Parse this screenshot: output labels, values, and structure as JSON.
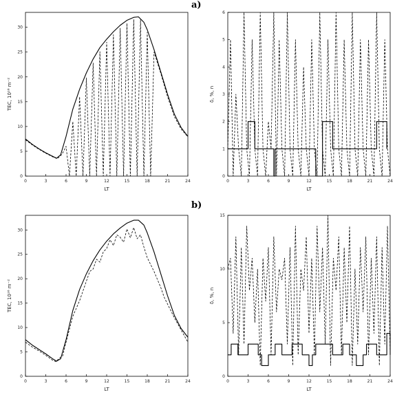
{
  "panel_labels": [
    "a)",
    "b)"
  ],
  "chart_data": [
    {
      "id": "a-left",
      "type": "line",
      "xlabel": "LT",
      "ylabel": "TEC, 10¹⁶ m⁻²",
      "xlim": [
        0,
        24
      ],
      "ylim": [
        0,
        33
      ],
      "xticks": [
        0,
        3,
        6,
        9,
        12,
        15,
        18,
        21,
        24
      ],
      "yticks": [
        0,
        5,
        10,
        15,
        20,
        25,
        30
      ],
      "series": [
        {
          "style": "solid",
          "x": [
            0,
            1,
            2,
            3,
            4,
            4.6,
            5.2,
            6,
            7,
            8,
            9,
            10,
            11,
            12,
            13,
            14,
            15,
            16,
            16.7,
            17.5,
            18,
            19,
            20,
            21,
            22,
            23,
            24
          ],
          "y": [
            7.5,
            6.4,
            5.5,
            4.7,
            4.0,
            3.6,
            4.3,
            8.0,
            13.5,
            17.5,
            20.8,
            23.6,
            25.9,
            27.6,
            29.1,
            30.4,
            31.4,
            32.0,
            32.1,
            31.0,
            29.5,
            25.5,
            21.0,
            16.5,
            12.5,
            9.8,
            8.0
          ]
        },
        {
          "style": "dashed",
          "x": [
            0,
            1,
            2,
            3,
            4,
            4.7,
            5.4,
            6,
            6.5,
            7,
            7.5,
            8,
            8.5,
            9,
            9.5,
            10,
            10.5,
            11,
            11.5,
            12,
            12.5,
            13,
            13.5,
            14,
            14.5,
            15,
            15.5,
            16,
            16.5,
            17,
            17.5,
            18,
            18.5,
            19,
            20,
            21,
            22,
            23,
            24
          ],
          "y": [
            7.3,
            6.3,
            5.4,
            4.6,
            3.9,
            3.5,
            4.4,
            6.0,
            0,
            11.0,
            0,
            16.0,
            0,
            19.8,
            0,
            22.8,
            0,
            25.1,
            0,
            27.0,
            0,
            28.5,
            0,
            29.8,
            0,
            30.8,
            0,
            31.6,
            0,
            31.5,
            0,
            29.0,
            0,
            25.0,
            20.7,
            16.0,
            12.0,
            9.5,
            7.9
          ]
        }
      ]
    },
    {
      "id": "a-right",
      "type": "line",
      "xlabel": "LT",
      "ylabel": "δ, %, n",
      "xlim": [
        0,
        24
      ],
      "ylim": [
        0,
        6
      ],
      "xticks": [
        0,
        3,
        6,
        9,
        12,
        15,
        18,
        21,
        24
      ],
      "yticks": [
        0,
        1,
        2,
        3,
        4,
        5,
        6
      ],
      "series": [
        {
          "style": "solid",
          "kind": "step",
          "x": [
            0,
            1.5,
            3,
            3.5,
            4,
            6.8,
            7,
            7.5,
            9,
            10.5,
            12,
            13,
            14,
            14.5,
            15.5,
            17,
            18.5,
            20,
            21,
            22,
            22.5,
            23.5
          ],
          "y": [
            1,
            1,
            2,
            2,
            1,
            0,
            1,
            1,
            1,
            1,
            1,
            0,
            2,
            2,
            1,
            1,
            1,
            1,
            1,
            2,
            2,
            1
          ]
        },
        {
          "style": "dashed",
          "x": [
            0,
            0.4,
            0.8,
            1.2,
            1.6,
            2.0,
            2.4,
            2.8,
            3.2,
            3.6,
            4.0,
            4.4,
            4.8,
            5.2,
            5.6,
            6.0,
            6.4,
            6.8,
            7.2,
            7.6,
            8.0,
            8.4,
            8.8,
            9.2,
            9.6,
            10.0,
            10.4,
            10.8,
            11.2,
            11.6,
            12.0,
            12.4,
            12.8,
            13.2,
            13.6,
            14.0,
            14.4,
            14.8,
            15.2,
            15.6,
            16.0,
            16.4,
            16.8,
            17.2,
            17.6,
            18.0,
            18.4,
            18.8,
            19.2,
            19.6,
            20.0,
            20.4,
            20.8,
            21.2,
            21.6,
            22.0,
            22.4,
            22.8,
            23.2,
            23.6,
            24.0
          ],
          "y": [
            1,
            5,
            0,
            3,
            1,
            0,
            6,
            1,
            0,
            5,
            1,
            0,
            6,
            1,
            0,
            2,
            1,
            6,
            0,
            5,
            1,
            0,
            6,
            1,
            0,
            5,
            1,
            0,
            4,
            1,
            0,
            5,
            1,
            0,
            6,
            1,
            0,
            5,
            1,
            0,
            6,
            1,
            0,
            5,
            1,
            0,
            6,
            1,
            0,
            5,
            1,
            0,
            5,
            1,
            0,
            6,
            1,
            0,
            5,
            1,
            0
          ]
        }
      ]
    },
    {
      "id": "b-left",
      "type": "line",
      "xlabel": "LT",
      "ylabel": "TEC, 10¹⁶ m⁻²",
      "xlim": [
        0,
        24
      ],
      "ylim": [
        0,
        33
      ],
      "xticks": [
        0,
        3,
        6,
        9,
        12,
        15,
        18,
        21,
        24
      ],
      "yticks": [
        0,
        5,
        10,
        15,
        20,
        25,
        30
      ],
      "series": [
        {
          "style": "solid",
          "x": [
            0,
            1,
            2,
            3,
            4,
            4.6,
            5.2,
            6,
            7,
            8,
            9,
            10,
            11,
            12,
            13,
            14,
            15,
            16,
            16.7,
            17.5,
            18,
            19,
            20,
            21,
            22,
            23,
            24
          ],
          "y": [
            7.5,
            6.4,
            5.5,
            4.6,
            3.6,
            3.1,
            3.6,
            7.5,
            13.5,
            17.8,
            21.0,
            23.7,
            25.9,
            27.7,
            29.2,
            30.4,
            31.4,
            32.0,
            32.0,
            31.0,
            29.4,
            25.5,
            21.0,
            16.5,
            12.5,
            9.8,
            8.0
          ]
        },
        {
          "style": "dashed",
          "x": [
            0,
            1,
            2,
            3,
            4,
            4.5,
            5,
            5.5,
            6,
            7,
            8,
            9,
            9.5,
            10,
            10.5,
            11,
            11.5,
            12,
            12.5,
            13,
            13.5,
            14,
            14.5,
            15,
            15.5,
            16,
            16.5,
            17,
            17.5,
            18,
            19,
            20,
            20.5,
            21,
            22,
            23,
            24
          ],
          "y": [
            7.0,
            6.0,
            5.2,
            4.3,
            3.3,
            3.0,
            3.7,
            4.2,
            7.0,
            12.3,
            15.5,
            19.5,
            21.5,
            22.0,
            24.0,
            23.4,
            25.5,
            26.2,
            28.0,
            26.8,
            29.0,
            28.5,
            27.5,
            30.2,
            28.4,
            30.5,
            28.2,
            29.0,
            26.5,
            24.3,
            21.5,
            18.2,
            16.2,
            14.8,
            12.0,
            9.5,
            7.0
          ]
        }
      ]
    },
    {
      "id": "b-right",
      "type": "line",
      "xlabel": "LT",
      "ylabel": "δ, %, n",
      "xlim": [
        0,
        24
      ],
      "ylim": [
        0,
        15
      ],
      "xticks": [
        0,
        3,
        6,
        9,
        12,
        15,
        18,
        21,
        24
      ],
      "yticks": [
        0,
        5,
        10,
        15
      ],
      "series": [
        {
          "style": "solid",
          "kind": "step",
          "x": [
            0,
            0.5,
            1.0,
            1.5,
            2.0,
            3.0,
            4.0,
            4.5,
            5.0,
            6.0,
            7.0,
            7.5,
            8.0,
            9.0,
            9.5,
            10.0,
            11.0,
            12.0,
            12.5,
            13.0,
            14.0,
            15.0,
            15.5,
            16.0,
            17.0,
            17.5,
            18.0,
            19.0,
            20.0,
            20.5,
            21.0,
            22.0,
            23.0,
            23.5,
            24.0
          ],
          "y": [
            2,
            3,
            3,
            2,
            2,
            3,
            3,
            2,
            1,
            2,
            3,
            3,
            2,
            2,
            3,
            3,
            2,
            1,
            2,
            3,
            3,
            3,
            2,
            2,
            3,
            3,
            2,
            1,
            2,
            3,
            3,
            2,
            2,
            4,
            2
          ]
        },
        {
          "style": "dashed",
          "x": [
            0,
            0.4,
            0.8,
            1.2,
            1.6,
            2.0,
            2.4,
            2.8,
            3.2,
            3.6,
            4.0,
            4.4,
            4.8,
            5.2,
            5.6,
            6.0,
            6.4,
            6.8,
            7.2,
            7.6,
            8.0,
            8.4,
            8.8,
            9.2,
            9.6,
            10.0,
            10.4,
            10.8,
            11.2,
            11.6,
            12.0,
            12.4,
            12.8,
            13.2,
            13.6,
            14.0,
            14.4,
            14.8,
            15.2,
            15.6,
            16.0,
            16.4,
            16.8,
            17.2,
            17.6,
            18.0,
            18.4,
            18.8,
            19.2,
            19.6,
            20.0,
            20.4,
            20.8,
            21.2,
            21.6,
            22.0,
            22.4,
            22.8,
            23.2,
            23.6,
            24.0
          ],
          "y": [
            10,
            11,
            4,
            13,
            2,
            12,
            3,
            14,
            8,
            11,
            5,
            10,
            1,
            11,
            7,
            12,
            2,
            13,
            6,
            10,
            9,
            11,
            3,
            12,
            1,
            14,
            2,
            10,
            8,
            13,
            4,
            11,
            2,
            14,
            6,
            12,
            3,
            15,
            1,
            11,
            8,
            13,
            2,
            12,
            5,
            14,
            1,
            10,
            3,
            12,
            6,
            13,
            2,
            11,
            4,
            13,
            1,
            12,
            3,
            14,
            2
          ]
        }
      ]
    }
  ]
}
